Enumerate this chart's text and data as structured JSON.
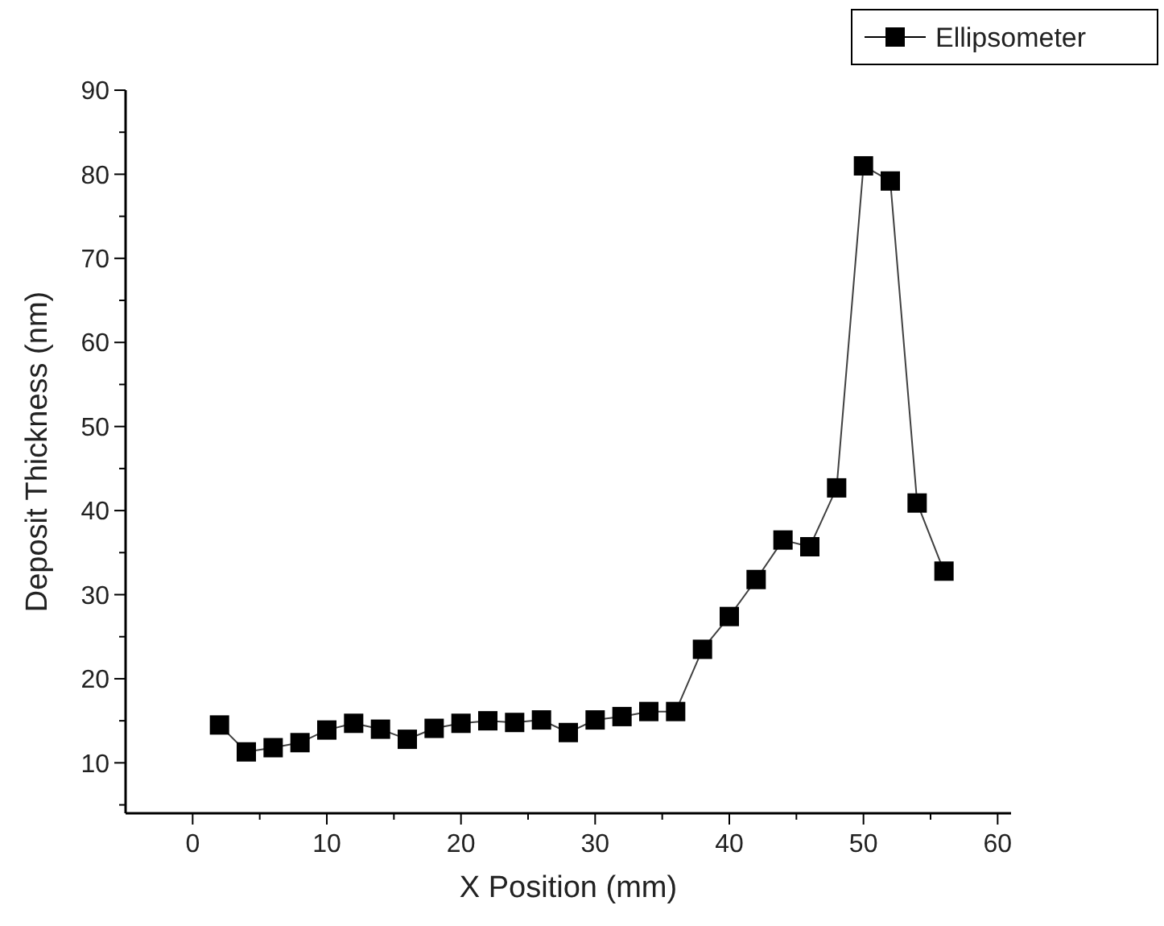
{
  "chart_data": {
    "type": "line",
    "xlabel": "X Position (mm)",
    "ylabel": "Deposit Thickness (nm)",
    "x": [
      2,
      4,
      6,
      8,
      10,
      12,
      14,
      16,
      18,
      20,
      22,
      24,
      26,
      28,
      30,
      32,
      34,
      36,
      38,
      40,
      42,
      44,
      46,
      48,
      50,
      52,
      54,
      56
    ],
    "series": [
      {
        "name": "Ellipsometer",
        "color": "#000000",
        "values": [
          14.5,
          11.3,
          11.8,
          12.4,
          13.9,
          14.7,
          14.0,
          12.8,
          14.1,
          14.7,
          15.0,
          14.8,
          15.1,
          13.6,
          15.1,
          15.5,
          16.1,
          16.1,
          23.5,
          27.4,
          31.8,
          36.5,
          35.7,
          42.7,
          81,
          79.2,
          40.9,
          32.8
        ]
      }
    ],
    "xlim": [
      -5,
      61
    ],
    "xticks": [
      0,
      {
        "value": 5,
        "label": null
      },
      10,
      {
        "value": 15,
        "label": null
      },
      20,
      {
        "value": 25,
        "label": null
      },
      30,
      {
        "value": 35,
        "label": null
      },
      40,
      {
        "value": 45,
        "label": null
      },
      50,
      {
        "value": 55,
        "label": null
      },
      60
    ],
    "ylim": [
      4,
      90
    ],
    "yticks": [
      {
        "value": 5,
        "label": null
      },
      10,
      {
        "value": 15,
        "label": null
      },
      20,
      {
        "value": 25,
        "label": null
      },
      30,
      {
        "value": 35,
        "label": null
      },
      40,
      {
        "value": 45,
        "label": null
      },
      50,
      {
        "value": 55,
        "label": null
      },
      60,
      {
        "value": 65,
        "label": null
      },
      70,
      {
        "value": 75,
        "label": null
      },
      80,
      {
        "value": 85,
        "label": null
      },
      90
    ],
    "marker": "square",
    "line_style": "solid",
    "legend": "top right",
    "grid": false
  }
}
